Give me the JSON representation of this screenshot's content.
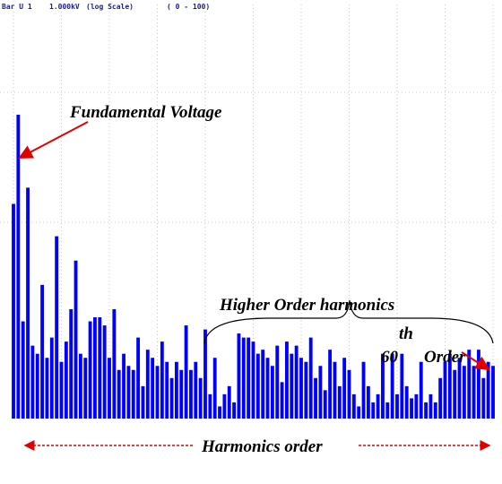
{
  "chart_data": {
    "type": "bar",
    "header": [
      "Bar U 1",
      "1.000kV",
      "(log Scale)",
      "( 0 - 100)"
    ],
    "annotations": [
      "Fundamental Voltage",
      "Higher Order harmonics",
      "th",
      "60",
      "Order"
    ],
    "xlabel": "Harmonics order",
    "values": [
      53,
      75,
      24,
      57,
      18,
      16,
      33,
      15,
      20,
      45,
      14,
      19,
      27,
      39,
      16,
      15,
      24,
      25,
      25,
      23,
      15,
      27,
      12,
      16,
      13,
      12,
      20,
      8,
      17,
      15,
      13,
      19,
      14,
      10,
      14,
      12,
      23,
      12,
      14,
      10,
      22,
      6,
      15,
      3,
      6,
      8,
      4,
      21,
      20,
      20,
      19,
      16,
      17,
      15,
      13,
      18,
      9,
      19,
      16,
      18,
      15,
      14,
      20,
      10,
      13,
      7,
      17,
      14,
      8,
      15,
      12,
      6,
      3,
      14,
      8,
      4,
      6,
      16,
      4,
      16,
      6,
      16,
      8,
      5,
      6,
      14,
      4,
      6,
      4,
      10,
      14,
      16,
      12,
      15,
      13,
      17,
      13,
      17,
      10,
      14,
      13
    ],
    "color": "#0000ff",
    "ylim": [
      0,
      100
    ],
    "grid": true
  }
}
